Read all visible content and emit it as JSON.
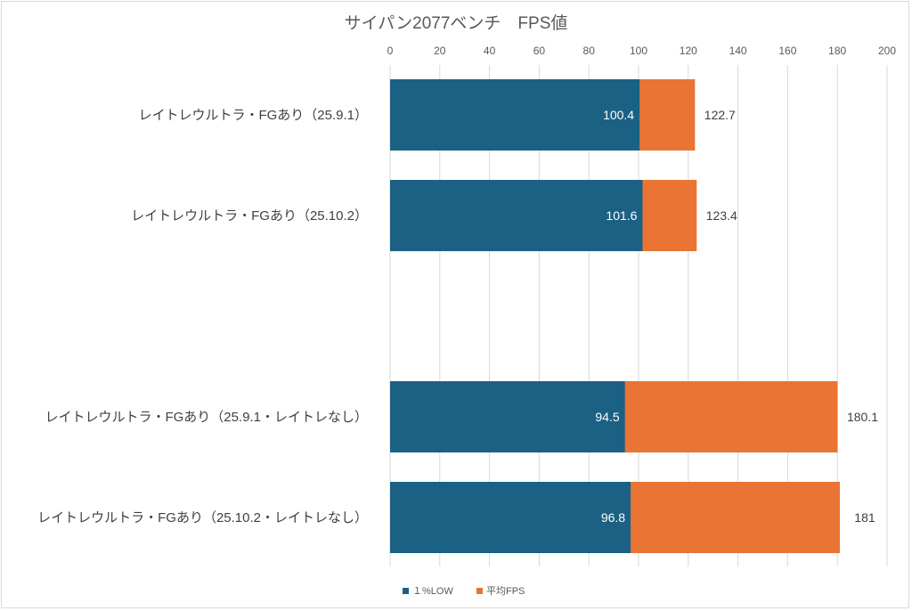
{
  "chart_data": {
    "type": "bar",
    "orientation": "horizontal",
    "stacking": "overlay",
    "title": "サイパン2077ベンチ　FPS値",
    "xlabel": "",
    "ylabel": "",
    "xlim": [
      0,
      200
    ],
    "x_ticks": [
      "0",
      "20",
      "40",
      "60",
      "80",
      "100",
      "120",
      "140",
      "160",
      "180",
      "200"
    ],
    "grid": true,
    "legend_position": "bottom",
    "categories": [
      "レイトレウルトラ・FGあり（25.9.1）",
      "レイトレウルトラ・FGあり（25.10.2）",
      "",
      "レイトレウルトラ・FGあり（25.9.1・レイトレなし）",
      "レイトレウルトラ・FGあり（25.10.2・レイトレなし）"
    ],
    "series": [
      {
        "name": "１%LOW",
        "color": "#1b6184",
        "values": [
          100.4,
          101.6,
          null,
          94.5,
          96.8
        ],
        "labels": [
          "100.4",
          "101.6",
          "",
          "94.5",
          "96.8"
        ]
      },
      {
        "name": "平均FPS",
        "color": "#e97434",
        "values": [
          122.7,
          123.4,
          null,
          180.1,
          181
        ],
        "labels": [
          "122.7",
          "123.4",
          "",
          "180.1",
          "181"
        ]
      }
    ]
  }
}
